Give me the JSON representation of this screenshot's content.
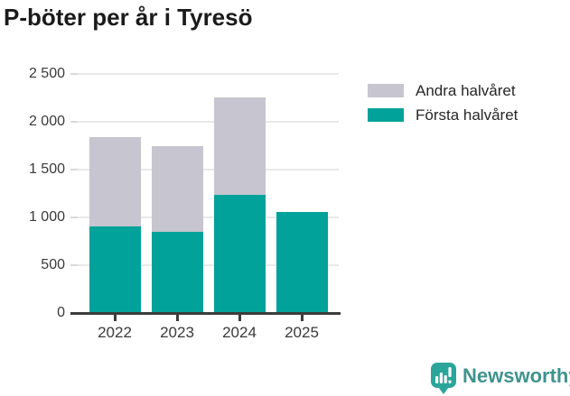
{
  "title": "P-böter per år i Tyresö",
  "chart_data": {
    "type": "bar",
    "stacked": true,
    "title": "P-böter per år i Tyresö",
    "categories": [
      "2022",
      "2023",
      "2024",
      "2025"
    ],
    "series": [
      {
        "name": "Andra halvåret",
        "color": "#c7c5cf",
        "values": [
          940,
          890,
          1020,
          null
        ]
      },
      {
        "name": "Första halvåret",
        "color": "#00a29a",
        "values": [
          900,
          850,
          1230,
          1050
        ]
      }
    ],
    "stack_order_bottom_to_top": [
      "Första halvåret",
      "Andra halvåret"
    ],
    "xlabel": "",
    "ylabel": "",
    "ylim": [
      0,
      2500
    ],
    "yticks": [
      0,
      500,
      1000,
      1500,
      2000,
      2500
    ],
    "ytick_labels": [
      "0",
      "500",
      "1 000",
      "1 500",
      "2 000",
      "2 500"
    ],
    "grid": "horizontal",
    "legend_position": "upper-right"
  },
  "legend": {
    "items": [
      {
        "label": "Andra halvåret",
        "color": "#c7c5cf"
      },
      {
        "label": "Första halvåret",
        "color": "#00a29a"
      }
    ]
  },
  "branding": {
    "name": "Newsworthy"
  },
  "colors": {
    "first_half": "#00a29a",
    "second_half": "#c7c5cf",
    "grid": "#e9e9eb",
    "axis": "#3c3c3c",
    "tick_text": "#3a3a3a",
    "title_text": "#1b1b1b",
    "brand_icon": "#2ba59a",
    "brand_text": "#3f938e"
  }
}
